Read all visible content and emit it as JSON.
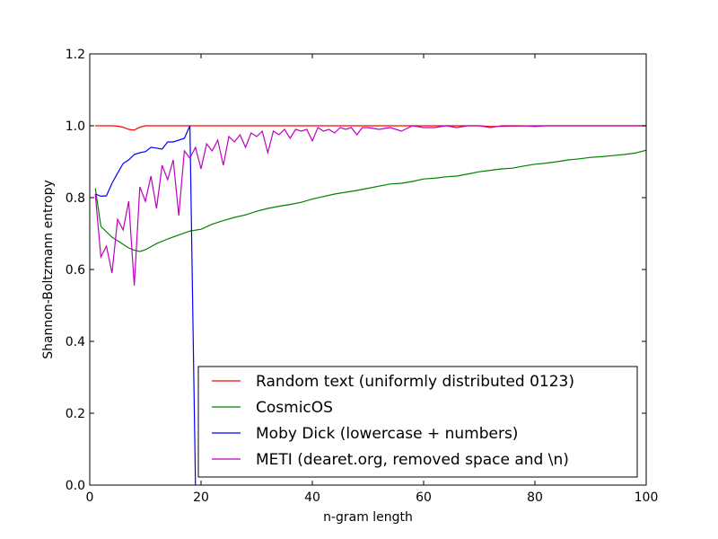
{
  "chart_data": {
    "type": "line",
    "xlabel": "n-gram length",
    "ylabel": "Shannon-Boltzmann entropy",
    "xlim": [
      0,
      100
    ],
    "ylim": [
      0.0,
      1.2
    ],
    "xticks": [
      0,
      20,
      40,
      60,
      80,
      100
    ],
    "yticks": [
      0.0,
      0.2,
      0.4,
      0.6,
      0.8,
      1.0,
      1.2
    ],
    "xtick_labels": [
      "0",
      "20",
      "40",
      "60",
      "80",
      "100"
    ],
    "ytick_labels": [
      "0.0",
      "0.2",
      "0.4",
      "0.6",
      "0.8",
      "1.0",
      "1.2"
    ],
    "grid": false,
    "legend_position": "lower-right",
    "series": [
      {
        "name": "Random text (uniformly distributed 0123)",
        "color": "#ff0000",
        "x": [
          1,
          2,
          3,
          4,
          5,
          6,
          7,
          8,
          9,
          10,
          11,
          12,
          15,
          20,
          30,
          40,
          50,
          60,
          70,
          72,
          80,
          90,
          100
        ],
        "y": [
          1.0,
          1.0,
          1.0,
          1.0,
          0.999,
          0.996,
          0.99,
          0.988,
          0.996,
          1.0,
          1.0,
          1.0,
          1.0,
          1.0,
          1.0,
          1.0,
          1.0,
          1.0,
          1.0,
          0.998,
          1.0,
          1.0,
          1.0
        ]
      },
      {
        "name": "CosmicOS",
        "color": "#008000",
        "x": [
          1,
          2,
          3,
          4,
          5,
          6,
          7,
          8,
          9,
          10,
          12,
          14,
          16,
          18,
          20,
          22,
          24,
          26,
          28,
          30,
          32,
          34,
          36,
          38,
          40,
          42,
          44,
          46,
          48,
          50,
          52,
          54,
          56,
          58,
          60,
          62,
          64,
          66,
          68,
          70,
          72,
          74,
          76,
          78,
          80,
          82,
          84,
          86,
          88,
          90,
          92,
          94,
          96,
          98,
          100
        ],
        "y": [
          0.826,
          0.72,
          0.705,
          0.69,
          0.68,
          0.67,
          0.66,
          0.654,
          0.65,
          0.655,
          0.672,
          0.685,
          0.696,
          0.707,
          0.712,
          0.726,
          0.736,
          0.745,
          0.752,
          0.762,
          0.77,
          0.776,
          0.781,
          0.787,
          0.796,
          0.803,
          0.81,
          0.815,
          0.82,
          0.826,
          0.832,
          0.838,
          0.84,
          0.845,
          0.852,
          0.854,
          0.858,
          0.86,
          0.866,
          0.872,
          0.876,
          0.88,
          0.882,
          0.888,
          0.893,
          0.896,
          0.9,
          0.905,
          0.908,
          0.912,
          0.914,
          0.917,
          0.92,
          0.924,
          0.932
        ]
      },
      {
        "name": "Moby Dick (lowercase + numbers)",
        "color": "#0000ff",
        "x": [
          1,
          2,
          3,
          4,
          5,
          6,
          7,
          8,
          9,
          10,
          11,
          12,
          13,
          14,
          15,
          16,
          17,
          18,
          19
        ],
        "y": [
          0.81,
          0.804,
          0.805,
          0.84,
          0.868,
          0.895,
          0.905,
          0.92,
          0.925,
          0.928,
          0.94,
          0.938,
          0.935,
          0.955,
          0.955,
          0.96,
          0.965,
          1.0,
          0.0
        ]
      },
      {
        "name": "METI (dearet.org, removed space and \\n)",
        "color": "#bf00bf",
        "x": [
          1,
          2,
          3,
          4,
          5,
          6,
          7,
          8,
          9,
          10,
          11,
          12,
          13,
          14,
          15,
          16,
          17,
          18,
          19,
          20,
          21,
          22,
          23,
          24,
          25,
          26,
          27,
          28,
          29,
          30,
          31,
          32,
          33,
          34,
          35,
          36,
          37,
          38,
          39,
          40,
          41,
          42,
          43,
          44,
          45,
          46,
          47,
          48,
          49,
          50,
          52,
          54,
          56,
          58,
          60,
          62,
          64,
          66,
          68,
          70,
          72,
          74,
          76,
          78,
          80,
          82,
          84,
          86,
          88,
          90,
          92,
          94,
          96,
          98,
          100
        ],
        "y": [
          0.81,
          0.635,
          0.665,
          0.59,
          0.74,
          0.71,
          0.79,
          0.555,
          0.83,
          0.79,
          0.86,
          0.77,
          0.89,
          0.85,
          0.905,
          0.75,
          0.93,
          0.91,
          0.94,
          0.88,
          0.95,
          0.93,
          0.96,
          0.89,
          0.97,
          0.955,
          0.975,
          0.94,
          0.98,
          0.97,
          0.985,
          0.925,
          0.985,
          0.975,
          0.99,
          0.965,
          0.99,
          0.985,
          0.99,
          0.958,
          0.995,
          0.985,
          0.99,
          0.98,
          0.995,
          0.99,
          0.995,
          0.975,
          0.995,
          0.995,
          0.99,
          0.995,
          0.985,
          1.0,
          0.995,
          0.995,
          1.0,
          0.995,
          1.0,
          1.0,
          0.995,
          1.0,
          1.0,
          1.0,
          0.998,
          1.0,
          1.0,
          1.0,
          1.0,
          1.0,
          1.0,
          1.0,
          1.0,
          1.0,
          1.0
        ]
      }
    ]
  }
}
